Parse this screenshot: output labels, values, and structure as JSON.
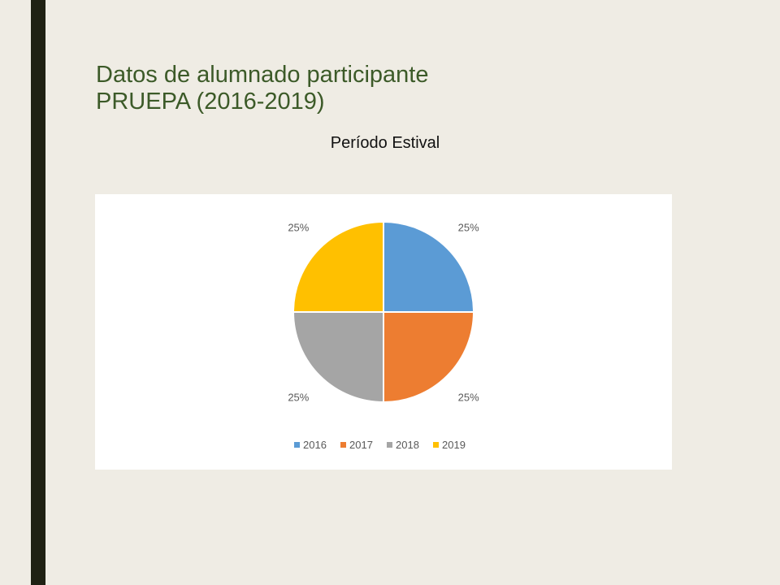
{
  "slide": {
    "title_line1": "Datos de alumnado participante",
    "title_line2": "PRUEPA (2016-2019)",
    "subtitle": "Período Estival"
  },
  "chart_data": {
    "type": "pie",
    "categories": [
      "2016",
      "2017",
      "2018",
      "2019"
    ],
    "values": [
      25,
      25,
      25,
      25
    ],
    "data_labels": [
      "25%",
      "25%",
      "25%",
      "25%"
    ],
    "colors": [
      "#5b9bd5",
      "#ed7d31",
      "#a5a5a5",
      "#ffc000"
    ],
    "legend_position": "bottom"
  }
}
